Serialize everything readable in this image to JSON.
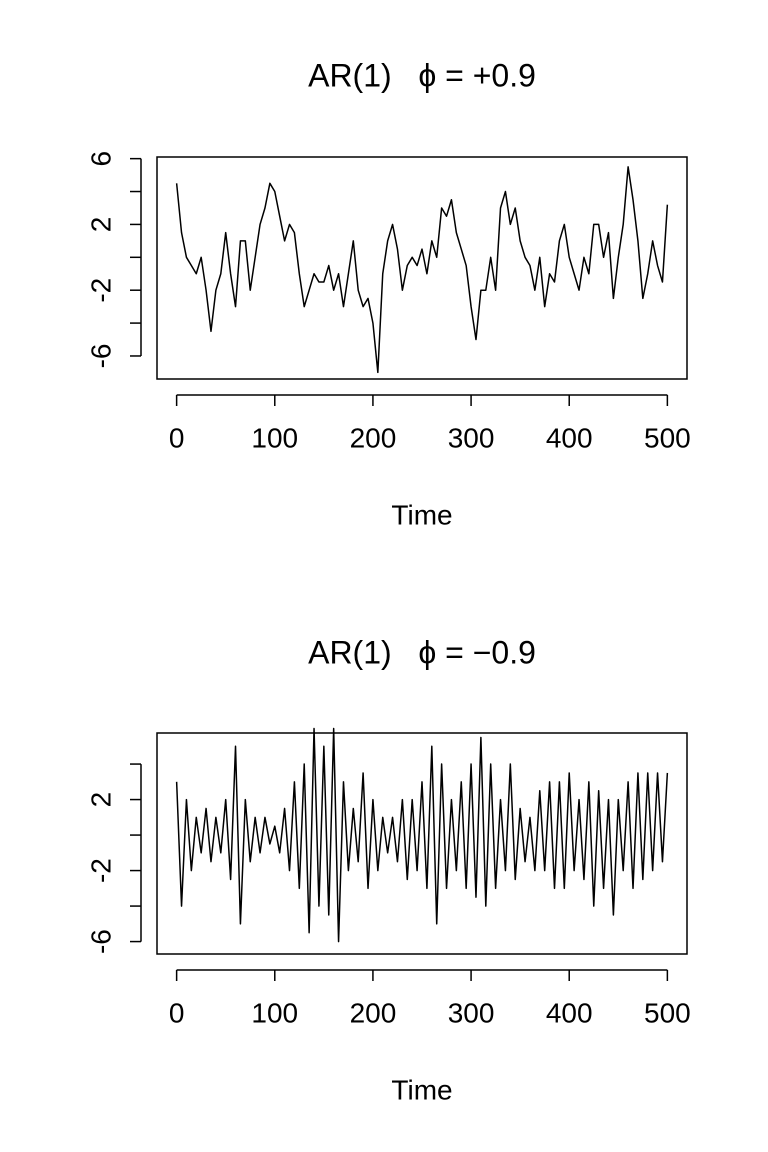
{
  "chart_data": [
    {
      "type": "line",
      "title": "AR(1)   ϕ = +0.9",
      "xlabel": "Time",
      "color": "#000000",
      "x": [
        0,
        5,
        10,
        15,
        20,
        25,
        30,
        35,
        40,
        45,
        50,
        55,
        60,
        65,
        70,
        75,
        80,
        85,
        90,
        95,
        100,
        105,
        110,
        115,
        120,
        125,
        130,
        135,
        140,
        145,
        150,
        155,
        160,
        165,
        170,
        175,
        180,
        185,
        190,
        195,
        200,
        205,
        210,
        215,
        220,
        225,
        230,
        235,
        240,
        245,
        250,
        255,
        260,
        265,
        270,
        275,
        280,
        285,
        290,
        295,
        300,
        305,
        310,
        315,
        320,
        325,
        330,
        335,
        340,
        345,
        350,
        355,
        360,
        365,
        370,
        375,
        380,
        385,
        390,
        395,
        400,
        405,
        410,
        415,
        420,
        425,
        430,
        435,
        440,
        445,
        450,
        455,
        460,
        465,
        470,
        475,
        480,
        485,
        490,
        495,
        500
      ],
      "values": [
        4.5,
        1.5,
        0,
        -0.5,
        -1,
        0,
        -2,
        -4.5,
        -2,
        -1,
        1.5,
        -1,
        -3,
        1,
        1,
        -2,
        0,
        2,
        3,
        4.5,
        4,
        2.5,
        1,
        2,
        1.5,
        -1,
        -3,
        -2,
        -1,
        -1.5,
        -1.5,
        -0.5,
        -2,
        -1,
        -3,
        -1,
        1,
        -2,
        -3,
        -2.5,
        -4,
        -7,
        -1,
        1,
        2,
        0.5,
        -2,
        -0.5,
        0,
        -0.5,
        0.5,
        -1,
        1,
        0,
        3,
        2.5,
        3.5,
        1.5,
        0.5,
        -0.5,
        -3,
        -5,
        -2,
        -2,
        0,
        -2,
        3,
        4,
        2,
        3,
        1,
        0,
        -0.5,
        -2,
        0,
        -3,
        -1,
        -1.5,
        1,
        2,
        0,
        -1,
        -2,
        0,
        -1,
        2,
        2,
        0,
        1.5,
        -2.5,
        0,
        2,
        5.5,
        3.5,
        1,
        -2.5,
        -1,
        1,
        -0.5,
        -1.5,
        3.2
      ],
      "xlim": [
        -20,
        520
      ],
      "xticks": [
        0,
        100,
        200,
        300,
        400,
        500
      ],
      "ylim": [
        -7.4,
        6.1
      ],
      "yticks": [
        -6,
        -4,
        -2,
        0,
        2,
        4,
        6
      ],
      "ytick_labels": [
        -6,
        -2,
        2,
        6
      ]
    },
    {
      "type": "line",
      "title": "AR(1)   ϕ = −0.9",
      "xlabel": "Time",
      "color": "#000000",
      "x": [
        0,
        5,
        10,
        15,
        20,
        25,
        30,
        35,
        40,
        45,
        50,
        55,
        60,
        65,
        70,
        75,
        80,
        85,
        90,
        95,
        100,
        105,
        110,
        115,
        120,
        125,
        130,
        135,
        140,
        145,
        150,
        155,
        160,
        165,
        170,
        175,
        180,
        185,
        190,
        195,
        200,
        205,
        210,
        215,
        220,
        225,
        230,
        235,
        240,
        245,
        250,
        255,
        260,
        265,
        270,
        275,
        280,
        285,
        290,
        295,
        300,
        305,
        310,
        315,
        320,
        325,
        330,
        335,
        340,
        345,
        350,
        355,
        360,
        365,
        370,
        375,
        380,
        385,
        390,
        395,
        400,
        405,
        410,
        415,
        420,
        425,
        430,
        435,
        440,
        445,
        450,
        455,
        460,
        465,
        470,
        475,
        480,
        485,
        490,
        495,
        500
      ],
      "values": [
        3,
        -4,
        2,
        -2,
        1,
        -1,
        1.5,
        -1.5,
        1,
        -1,
        2,
        -2.5,
        5,
        -5,
        2,
        -1.5,
        1,
        -1,
        1,
        -0.5,
        0.5,
        -1,
        1.5,
        -2,
        3,
        -3,
        4,
        -5.5,
        6,
        -4,
        5,
        -4.5,
        6,
        -6,
        3,
        -2,
        1.5,
        -1.5,
        3.5,
        -3,
        2,
        -2,
        1,
        -1,
        1,
        -1.5,
        2,
        -2.5,
        2,
        -2,
        3,
        -3,
        5,
        -5,
        4,
        -3,
        2,
        -2,
        3,
        -3,
        4,
        -3.5,
        5.5,
        -4,
        4,
        -3,
        2,
        -2,
        4,
        -2.5,
        1.5,
        -1.5,
        1,
        -2,
        2.5,
        -2,
        3,
        -3,
        3,
        -3,
        3.5,
        -2,
        2,
        -2.5,
        3,
        -4,
        2.5,
        -3,
        2,
        -4.5,
        2,
        -2,
        3,
        -3,
        3.5,
        -2.5,
        3.5,
        -2,
        3.5,
        -1.5,
        3.5
      ],
      "xlim": [
        -20,
        520
      ],
      "xticks": [
        0,
        100,
        200,
        300,
        400,
        500
      ],
      "ylim": [
        -6.7,
        5.75
      ],
      "yticks": [
        -6,
        -4,
        -2,
        0,
        2,
        4
      ],
      "ytick_labels": [
        -6,
        -2,
        2
      ]
    }
  ]
}
